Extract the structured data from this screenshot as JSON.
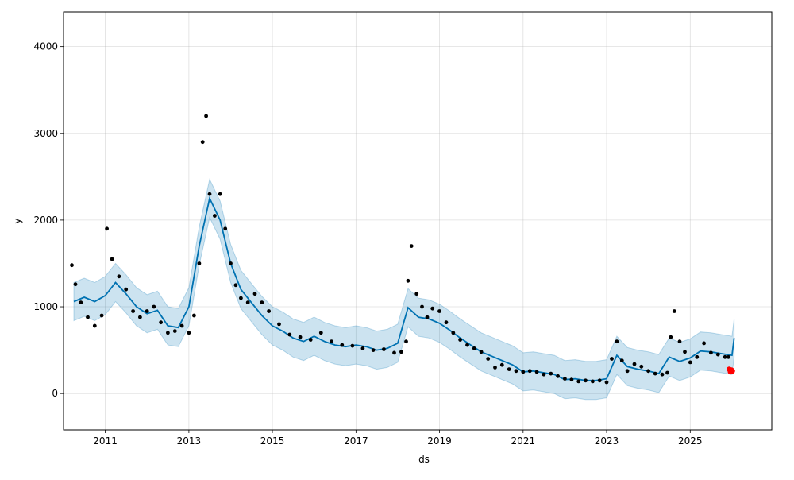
{
  "chart_data": {
    "type": "line",
    "title": "",
    "xlabel": "ds",
    "ylabel": "y",
    "xlim": [
      "2010-01-01",
      "2026-12-15"
    ],
    "ylim": [
      -420,
      4400
    ],
    "grid": true,
    "x_ticks": [
      {
        "date": "2011-01-01",
        "label": "2011"
      },
      {
        "date": "2013-01-01",
        "label": "2013"
      },
      {
        "date": "2015-01-01",
        "label": "2015"
      },
      {
        "date": "2017-01-01",
        "label": "2017"
      },
      {
        "date": "2019-01-01",
        "label": "2019"
      },
      {
        "date": "2021-01-01",
        "label": "2021"
      },
      {
        "date": "2023-01-01",
        "label": "2023"
      },
      {
        "date": "2025-01-01",
        "label": "2025"
      }
    ],
    "y_ticks": [
      {
        "value": 0,
        "label": "0"
      },
      {
        "value": 1000,
        "label": "1000"
      },
      {
        "value": 2000,
        "label": "2000"
      },
      {
        "value": 3000,
        "label": "3000"
      },
      {
        "value": 4000,
        "label": "4000"
      }
    ],
    "colors": {
      "observed": "#000000",
      "forecast": "#0072B2",
      "interval": "#0072B2",
      "highlight": "#FF0000"
    },
    "forecast": {
      "x": [
        "2010-04-01",
        "2010-07-01",
        "2010-10-01",
        "2011-01-01",
        "2011-04-01",
        "2011-07-01",
        "2011-10-01",
        "2012-01-01",
        "2012-04-01",
        "2012-07-01",
        "2012-10-01",
        "2013-01-01",
        "2013-04-01",
        "2013-07-01",
        "2013-10-01",
        "2014-01-01",
        "2014-04-01",
        "2014-07-01",
        "2014-10-01",
        "2015-01-01",
        "2015-04-01",
        "2015-07-01",
        "2015-10-01",
        "2016-01-01",
        "2016-04-01",
        "2016-07-01",
        "2016-10-01",
        "2017-01-01",
        "2017-04-01",
        "2017-07-01",
        "2017-10-01",
        "2018-01-01",
        "2018-04-01",
        "2018-07-01",
        "2018-10-01",
        "2019-01-01",
        "2019-04-01",
        "2019-07-01",
        "2019-10-01",
        "2020-01-01",
        "2020-04-01",
        "2020-07-01",
        "2020-10-01",
        "2021-01-01",
        "2021-04-01",
        "2021-07-01",
        "2021-10-01",
        "2022-01-01",
        "2022-04-01",
        "2022-07-01",
        "2022-10-01",
        "2023-01-01",
        "2023-04-01",
        "2023-07-01",
        "2023-10-01",
        "2024-01-01",
        "2024-04-01",
        "2024-07-01",
        "2024-10-01",
        "2025-01-01",
        "2025-04-01",
        "2025-07-01",
        "2025-10-01",
        "2026-01-01",
        "2026-01-20"
      ],
      "yhat": [
        1060,
        1110,
        1060,
        1130,
        1280,
        1150,
        1000,
        920,
        960,
        780,
        760,
        1000,
        1700,
        2250,
        2000,
        1500,
        1200,
        1050,
        900,
        780,
        720,
        640,
        600,
        660,
        600,
        560,
        540,
        560,
        540,
        500,
        520,
        580,
        990,
        880,
        860,
        810,
        730,
        640,
        560,
        480,
        430,
        380,
        330,
        250,
        260,
        240,
        220,
        160,
        170,
        150,
        150,
        170,
        440,
        310,
        280,
        260,
        230,
        420,
        370,
        410,
        490,
        480,
        460,
        440,
        640
      ],
      "lower": [
        840,
        890,
        840,
        910,
        1060,
        930,
        780,
        700,
        740,
        560,
        540,
        780,
        1480,
        2030,
        1780,
        1280,
        980,
        830,
        680,
        560,
        500,
        420,
        380,
        440,
        380,
        340,
        320,
        340,
        320,
        280,
        300,
        360,
        770,
        660,
        640,
        590,
        510,
        420,
        340,
        260,
        210,
        160,
        110,
        30,
        40,
        20,
        0,
        -60,
        -50,
        -70,
        -70,
        -50,
        220,
        90,
        60,
        40,
        10,
        200,
        150,
        190,
        270,
        260,
        240,
        220,
        420
      ],
      "upper": [
        1280,
        1330,
        1280,
        1350,
        1500,
        1370,
        1220,
        1140,
        1180,
        1000,
        980,
        1220,
        1920,
        2470,
        2220,
        1720,
        1420,
        1270,
        1120,
        1000,
        940,
        860,
        820,
        880,
        820,
        780,
        760,
        780,
        760,
        720,
        740,
        800,
        1210,
        1100,
        1080,
        1030,
        950,
        860,
        780,
        700,
        650,
        600,
        550,
        470,
        480,
        460,
        440,
        380,
        390,
        370,
        370,
        390,
        660,
        530,
        500,
        480,
        450,
        640,
        590,
        630,
        710,
        700,
        680,
        660,
        860
      ]
    },
    "observed_segments": [
      {
        "x": [
          "2010-03-15",
          "2010-04-15",
          "2010-06-01",
          "2010-08-01",
          "2010-10-01",
          "2010-12-01",
          "2011-01-15",
          "2011-03-01",
          "2011-05-01",
          "2011-07-01",
          "2011-09-01",
          "2011-11-01",
          "2012-01-01",
          "2012-03-01",
          "2012-05-01",
          "2012-07-01",
          "2012-09-01",
          "2012-11-01",
          "2013-01-01",
          "2013-02-15",
          "2013-04-01",
          "2013-05-01",
          "2013-06-01",
          "2013-07-01",
          "2013-08-15",
          "2013-10-01",
          "2013-11-15",
          "2014-01-01",
          "2014-02-15",
          "2014-04-01",
          "2014-06-01",
          "2014-08-01",
          "2014-10-01",
          "2014-12-01",
          "2015-03-01",
          "2015-06-01",
          "2015-09-01",
          "2015-12-01",
          "2016-03-01",
          "2016-06-01",
          "2016-09-01",
          "2016-12-01",
          "2017-03-01",
          "2017-06-01",
          "2017-09-01",
          "2017-12-01",
          "2018-02-01",
          "2018-03-15",
          "2018-04-01",
          "2018-05-01",
          "2018-06-15",
          "2018-08-01",
          "2018-09-15",
          "2018-11-01",
          "2019-01-01",
          "2019-03-01",
          "2019-05-01",
          "2019-07-01",
          "2019-09-01",
          "2019-11-01",
          "2020-01-01",
          "2020-03-01",
          "2020-05-01",
          "2020-07-01",
          "2020-09-01",
          "2020-11-01",
          "2021-01-01",
          "2021-03-01",
          "2021-05-01",
          "2021-07-01",
          "2021-09-01",
          "2021-11-01",
          "2022-01-01",
          "2022-03-01",
          "2022-05-01",
          "2022-07-01",
          "2022-09-01",
          "2022-11-01",
          "2023-01-01",
          "2023-02-15",
          "2023-04-01",
          "2023-05-15",
          "2023-07-01",
          "2023-09-01",
          "2023-11-01",
          "2024-01-01",
          "2024-03-01",
          "2024-05-01",
          "2024-06-15",
          "2024-07-15",
          "2024-08-15",
          "2024-10-01",
          "2024-11-15",
          "2025-01-01",
          "2025-03-01",
          "2025-05-01",
          "2025-07-01",
          "2025-09-01",
          "2025-11-01",
          "2025-12-01"
        ],
        "y": [
          1480,
          1260,
          1050,
          880,
          780,
          900,
          1900,
          1550,
          1350,
          1200,
          950,
          880,
          950,
          1000,
          820,
          700,
          720,
          780,
          700,
          900,
          1500,
          2900,
          3200,
          2300,
          2050,
          2300,
          1900,
          1500,
          1250,
          1100,
          1050,
          1150,
          1050,
          950,
          800,
          680,
          650,
          620,
          700,
          600,
          560,
          550,
          520,
          500,
          510,
          470,
          480,
          600,
          1300,
          1700,
          1150,
          1000,
          880,
          980,
          950,
          820,
          700,
          620,
          560,
          520,
          480,
          400,
          300,
          330,
          280,
          260,
          250,
          260,
          250,
          220,
          230,
          200,
          170,
          160,
          140,
          150,
          140,
          150,
          130,
          400,
          600,
          380,
          260,
          340,
          310,
          260,
          230,
          220,
          240,
          650,
          950,
          600,
          480,
          360,
          420,
          580,
          470,
          450,
          420,
          420
        ]
      }
    ],
    "highlight_points": {
      "x": [
        "2025-12-08",
        "2025-12-18",
        "2025-12-28",
        "2026-01-05"
      ],
      "y": [
        280,
        250,
        270,
        260
      ]
    }
  }
}
